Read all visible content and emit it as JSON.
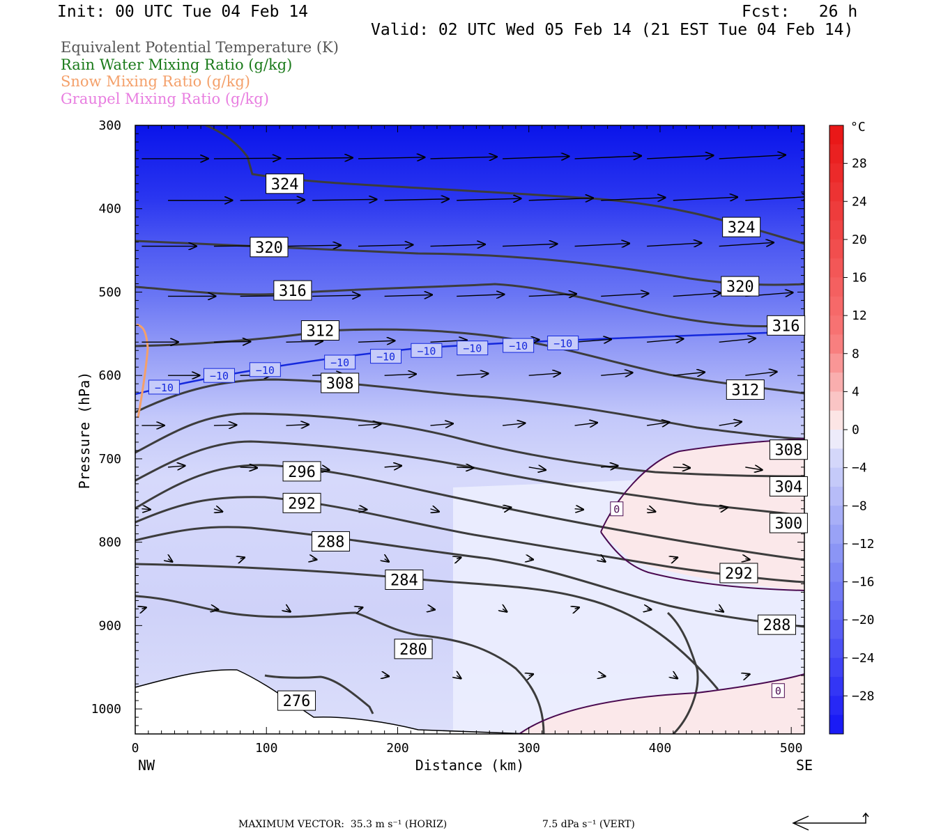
{
  "header": {
    "init": "Init: 00 UTC Tue 04 Feb 14",
    "fcst": "Fcst:   26 h",
    "valid": "Valid: 02 UTC Wed 05 Feb 14 (21 EST Tue 04 Feb 14)"
  },
  "legend": [
    {
      "label": "Equivalent Potential Temperature (K)",
      "color": "#555555"
    },
    {
      "label": "Rain Water Mixing Ratio (g/kg)",
      "color": "#1a7a1a"
    },
    {
      "label": "Snow Mixing Ratio (g/kg)",
      "color": "#f4a06a"
    },
    {
      "label": "Graupel Mixing Ratio (g/kg)",
      "color": "#e87ee0"
    }
  ],
  "colorbar": {
    "unit": "°C",
    "tick_labels": [
      "28",
      "24",
      "20",
      "16",
      "12",
      "8",
      "4",
      "0",
      "−4",
      "−8",
      "−12",
      "−16",
      "−20",
      "−24",
      "−28"
    ]
  },
  "footer": {
    "max_vector": "MAXIMUM VECTOR:  35.3 m s⁻¹ (HORIZ)",
    "vert": "7.5 dPa s⁻¹ (VERT)"
  },
  "chart_data": {
    "type": "cross-section",
    "xlabel": "Distance (km)",
    "ylabel": "Pressure (hPa)",
    "xlim": [
      0,
      510
    ],
    "ylim": [
      1030,
      300
    ],
    "x_ticks": [
      "0",
      "100",
      "200",
      "300",
      "400",
      "500"
    ],
    "y_ticks": [
      "300",
      "400",
      "500",
      "600",
      "700",
      "800",
      "900",
      "1000"
    ],
    "x_end_labels": {
      "left": "NW",
      "right": "SE"
    },
    "fill_variable": "Temperature (°C)",
    "fill_range": [
      -32,
      32
    ],
    "fill_bands": [
      {
        "p": 300,
        "t": -31
      },
      {
        "p": 390,
        "t": -27
      },
      {
        "p": 440,
        "t": -23
      },
      {
        "p": 500,
        "t": -18
      },
      {
        "p": 550,
        "t": -14
      },
      {
        "p": 600,
        "t": -10
      },
      {
        "p": 650,
        "t": -7
      },
      {
        "p": 720,
        "t": -4
      },
      {
        "p": 900,
        "t": -3
      },
      {
        "p": 1030,
        "t": -2
      }
    ],
    "theta_e_labels": [
      {
        "text": "324",
        "x": 114,
        "p": 370
      },
      {
        "text": "324",
        "x": 462,
        "p": 422
      },
      {
        "text": "320",
        "x": 102,
        "p": 446
      },
      {
        "text": "320",
        "x": 461,
        "p": 493
      },
      {
        "text": "316",
        "x": 120,
        "p": 498
      },
      {
        "text": "316",
        "x": 496,
        "p": 540
      },
      {
        "text": "312",
        "x": 141,
        "p": 546
      },
      {
        "text": "312",
        "x": 465,
        "p": 617
      },
      {
        "text": "308",
        "x": 156,
        "p": 609
      },
      {
        "text": "308",
        "x": 498,
        "p": 689
      },
      {
        "text": "304",
        "x": 498,
        "p": 733
      },
      {
        "text": "300",
        "x": 498,
        "p": 777
      },
      {
        "text": "296",
        "x": 127,
        "p": 715
      },
      {
        "text": "292",
        "x": 127,
        "p": 753
      },
      {
        "text": "292",
        "x": 460,
        "p": 837
      },
      {
        "text": "288",
        "x": 149,
        "p": 799
      },
      {
        "text": "288",
        "x": 489,
        "p": 899
      },
      {
        "text": "284",
        "x": 205,
        "p": 845
      },
      {
        "text": "280",
        "x": 212,
        "p": 928
      },
      {
        "text": "276",
        "x": 123,
        "p": 990
      }
    ],
    "temp_labels": [
      {
        "text": "−10",
        "x": 22,
        "p": 614
      },
      {
        "text": "−10",
        "x": 64,
        "p": 600
      },
      {
        "text": "−10",
        "x": 99,
        "p": 593
      },
      {
        "text": "−10",
        "x": 156,
        "p": 584
      },
      {
        "text": "−10",
        "x": 191,
        "p": 577
      },
      {
        "text": "−10",
        "x": 222,
        "p": 570
      },
      {
        "text": "−10",
        "x": 257,
        "p": 567
      },
      {
        "text": "−10",
        "x": 292,
        "p": 564
      },
      {
        "text": "−10",
        "x": 326,
        "p": 561
      },
      {
        "text": "0",
        "x": 367,
        "p": 760
      },
      {
        "text": "0",
        "x": 490,
        "p": 978
      }
    ]
  }
}
